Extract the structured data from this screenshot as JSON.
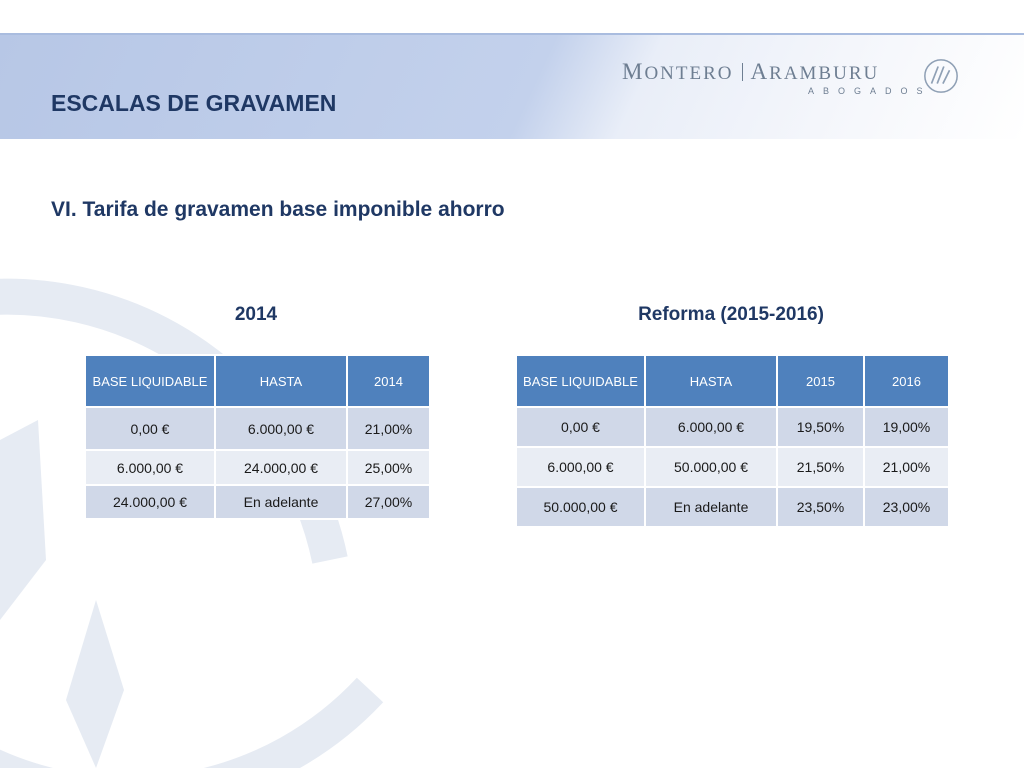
{
  "header": {
    "title": "ESCALAS DE GRAVAMEN",
    "logo": {
      "name_part1_initial": "M",
      "name_part1_rest": "ONTERO",
      "name_part2_initial": "A",
      "name_part2_rest": "RAMBURU",
      "subtitle": "ABOGADOS",
      "mark_icon": "monogram-circle-icon"
    }
  },
  "section": {
    "title": "VI.  Tarifa de gravamen base imponible ahorro"
  },
  "table_2014": {
    "caption": "2014",
    "columns": [
      "BASE LIQUIDABLE",
      "HASTA",
      "2014"
    ],
    "rows": [
      [
        "0,00 €",
        "6.000,00 €",
        "21,00%"
      ],
      [
        "6.000,00 €",
        "24.000,00 €",
        "25,00%"
      ],
      [
        "24.000,00 €",
        "En adelante",
        "27,00%"
      ]
    ]
  },
  "table_reforma": {
    "caption": "Reforma (2015-2016)",
    "columns": [
      "BASE LIQUIDABLE",
      "HASTA",
      "2015",
      "2016"
    ],
    "rows": [
      [
        "0,00 €",
        "6.000,00 €",
        "19,50%",
        "19,00%"
      ],
      [
        "6.000,00  €",
        "50.000,00 €",
        "21,50%",
        "21,00%"
      ],
      [
        "50.000,00 €",
        "En adelante",
        "23,50%",
        "23,00%"
      ]
    ]
  },
  "colors": {
    "title_text": "#1f3864",
    "table_header": "#4f81bd",
    "row_dark": "#d0d8e8",
    "row_light": "#e9edf4",
    "header_band": "#c3d1ec"
  }
}
